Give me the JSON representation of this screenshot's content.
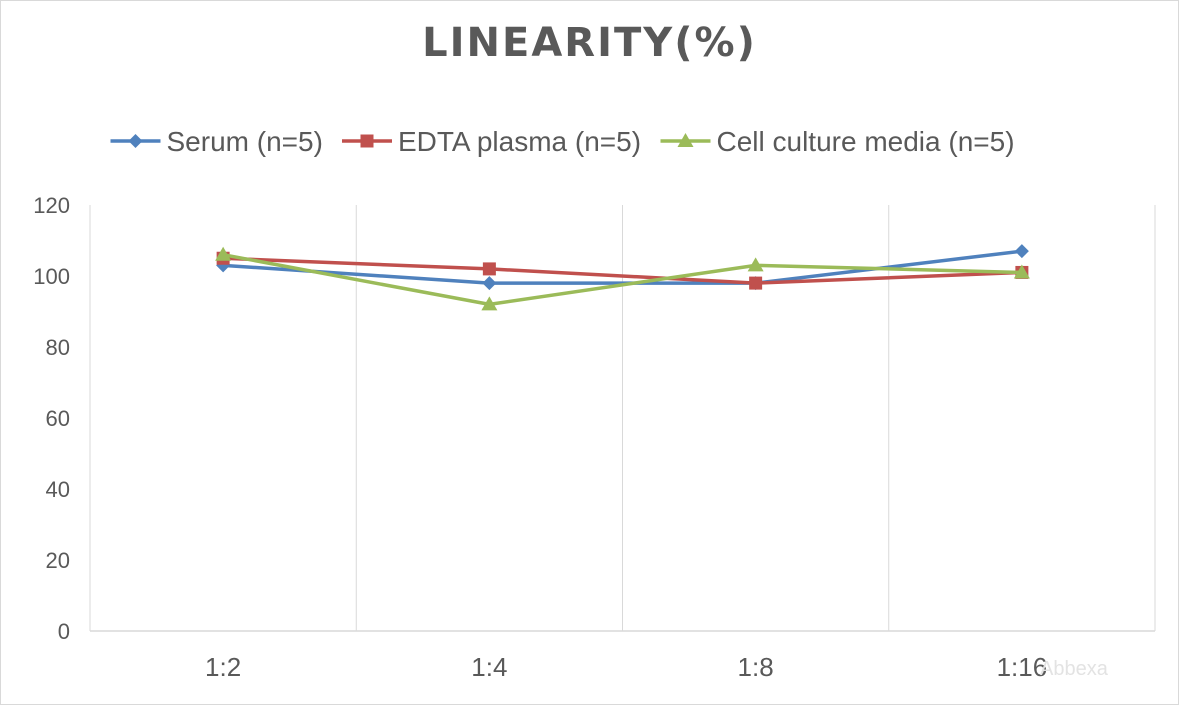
{
  "chart_data": {
    "type": "line",
    "title": "LINEARITY(%)",
    "xlabel": "",
    "ylabel": "",
    "categories": [
      "1:2",
      "1:4",
      "1:8",
      "1:16"
    ],
    "ylim": [
      0,
      120
    ],
    "yticks": [
      0,
      20,
      40,
      60,
      80,
      100,
      120
    ],
    "grid": "vertical",
    "legend": "top",
    "series": [
      {
        "name": "Serum (n=5)",
        "values": [
          103,
          98,
          98,
          107
        ],
        "color": "#4f81bd",
        "marker": "diamond"
      },
      {
        "name": "EDTA plasma (n=5)",
        "values": [
          105,
          102,
          98,
          101
        ],
        "color": "#c0504d",
        "marker": "square"
      },
      {
        "name": "Cell culture media (n=5)",
        "values": [
          106,
          92,
          103,
          101
        ],
        "color": "#9bbb59",
        "marker": "triangle"
      }
    ]
  },
  "watermark": "Abbexa"
}
